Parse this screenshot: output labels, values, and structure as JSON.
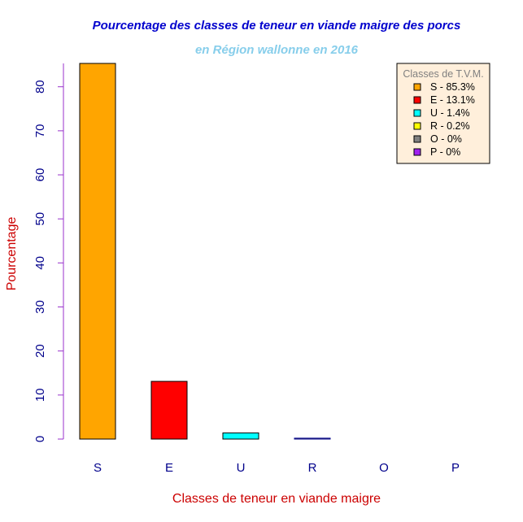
{
  "chart_data": {
    "type": "bar",
    "title": "Pourcentage des classes de teneur en viande maigre des porcs",
    "subtitle": "en Région wallonne en 2016",
    "xlabel": "Classes de teneur en viande maigre",
    "ylabel": "Pourcentage",
    "categories": [
      "S",
      "E",
      "U",
      "R",
      "O",
      "P"
    ],
    "values": [
      85.3,
      13.1,
      1.4,
      0.2,
      0,
      0
    ],
    "colors": [
      "#FFA500",
      "#FF0000",
      "#00FFFF",
      "#FFFF00",
      "#808080",
      "#A020F0"
    ],
    "ylim": [
      0,
      85.3
    ],
    "yticks": [
      0,
      10,
      20,
      30,
      40,
      50,
      60,
      70,
      80
    ],
    "legend": {
      "title": "Classes de T.V.M.",
      "position": "top-right",
      "entries": [
        "S - 85.3%",
        "E - 13.1%",
        "U - 1.4%",
        "R - 0.2%",
        "O - 0%",
        "P - 0%"
      ]
    },
    "style": {
      "title_color": "#0000CD",
      "subtitle_color": "#87CEEB",
      "xlabel_color": "#CC0000",
      "ylabel_color": "#CC0000",
      "tick_label_color": "#00008B",
      "y_axis_color": "#9932CC",
      "legend_bg": "#FFEFDB",
      "legend_title_color": "#808080",
      "bar_border": "#000000"
    },
    "grid": false
  }
}
